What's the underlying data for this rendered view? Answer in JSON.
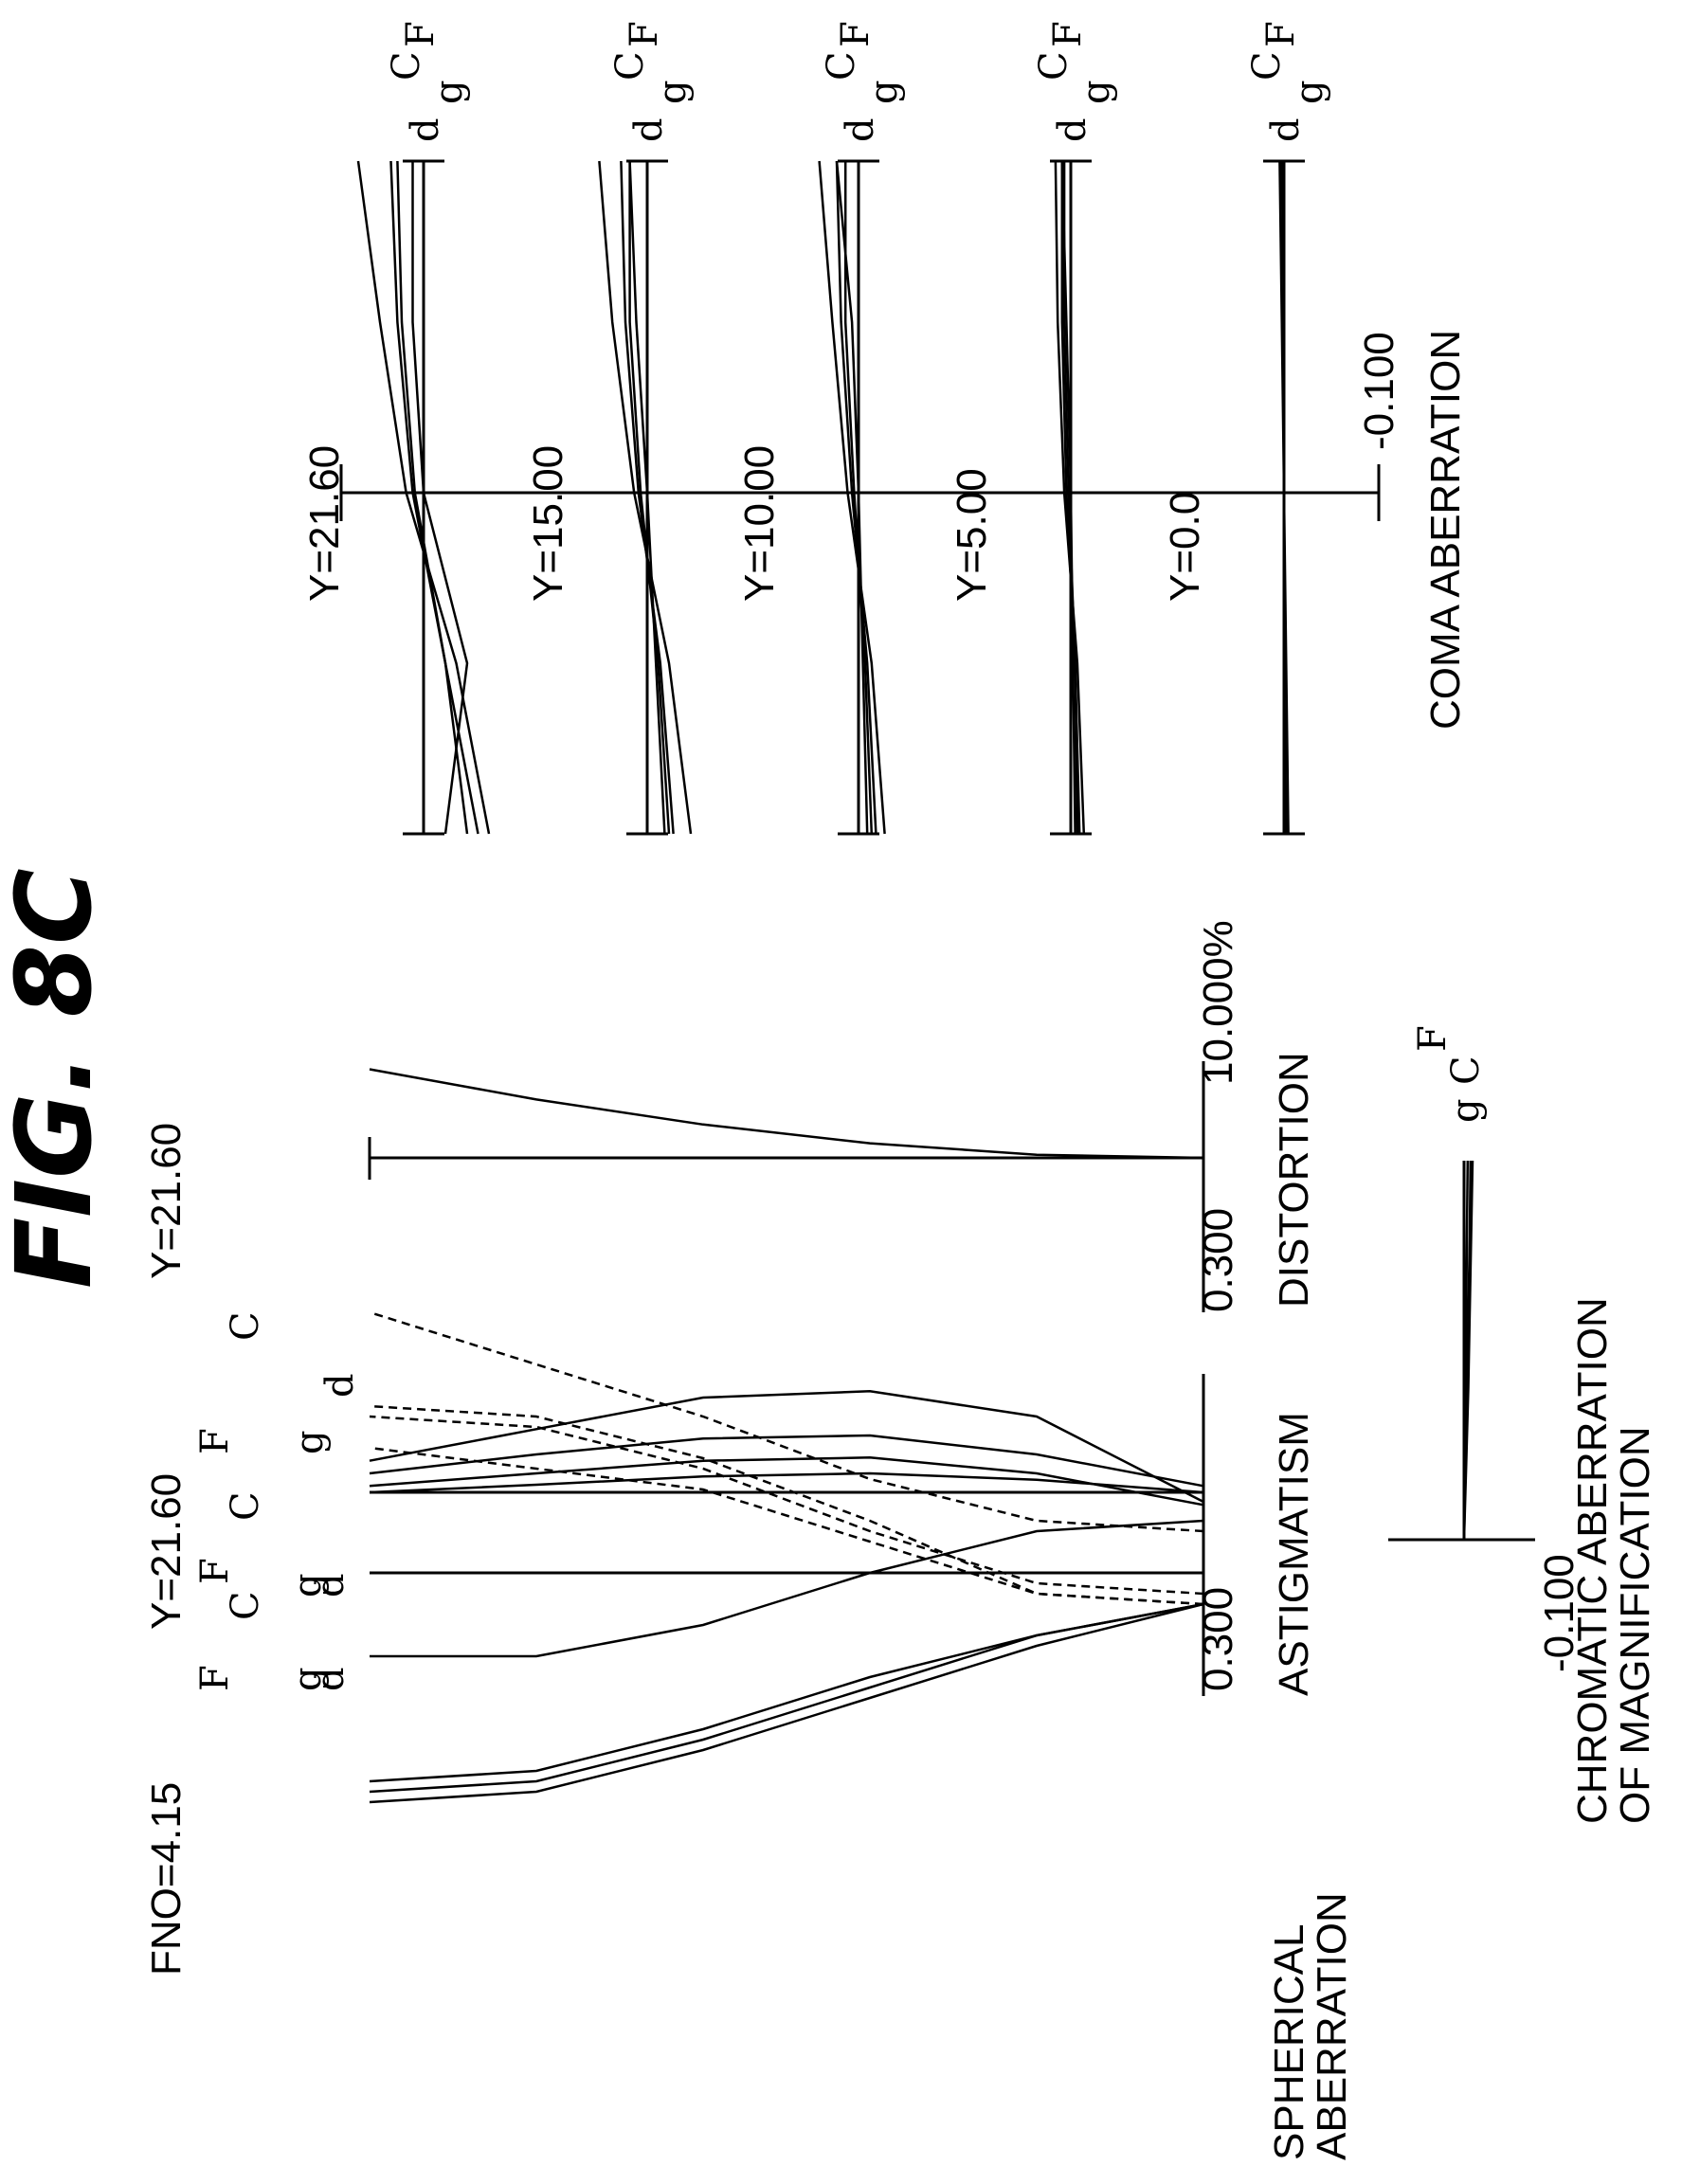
{
  "figure_title": "FIG. 8C",
  "chart_data": [
    {
      "type": "line",
      "title": "SPHERICAL ABERRATION",
      "header": "FNO=4.15",
      "scale_label": "0.300",
      "legend": [
        "d",
        "g",
        "C",
        "F"
      ],
      "x_range": [
        -0.3,
        0.3
      ],
      "y": [
        0,
        0.2,
        0.4,
        0.6,
        0.8,
        1.0
      ],
      "series": [
        {
          "name": "d",
          "values": [
            0,
            0.02,
            0.03,
            0.025,
            0.012,
            0.0
          ]
        },
        {
          "name": "g",
          "values": [
            -0.02,
            0.03,
            0.055,
            0.05,
            0.03,
            0.01
          ]
        },
        {
          "name": "C",
          "values": [
            0.01,
            0.06,
            0.09,
            0.085,
            0.06,
            0.03
          ]
        },
        {
          "name": "F",
          "values": [
            -0.015,
            0.12,
            0.16,
            0.15,
            0.1,
            0.05
          ]
        }
      ]
    },
    {
      "type": "line",
      "title": "ASTIGMATISM",
      "header": "Y=21.60",
      "scale_label": "0.300",
      "legend_sagittal": [
        "d",
        "g",
        "F",
        "C"
      ],
      "legend_meridional": [
        "d",
        "g",
        "F",
        "C"
      ],
      "x_range": [
        -0.3,
        0.3
      ],
      "y": [
        0,
        0.2,
        0.4,
        0.6,
        0.8,
        1.0
      ],
      "series": [
        {
          "name": "d",
          "kind": "sagittal",
          "values": [
            -0.03,
            -0.06,
            -0.1,
            -0.15,
            -0.19,
            -0.2
          ]
        },
        {
          "name": "g",
          "kind": "sagittal",
          "values": [
            -0.03,
            -0.07,
            -0.12,
            -0.17,
            -0.21,
            -0.22
          ]
        },
        {
          "name": "F",
          "kind": "sagittal",
          "values": [
            -0.03,
            -0.06,
            -0.11,
            -0.16,
            -0.2,
            -0.21
          ]
        },
        {
          "name": "C",
          "kind": "sagittal",
          "values": [
            0.05,
            0.04,
            0.0,
            -0.05,
            -0.08,
            -0.08
          ]
        },
        {
          "name": "d",
          "kind": "meridional",
          "values": [
            -0.03,
            -0.02,
            0.03,
            0.08,
            0.1,
            0.12
          ]
        },
        {
          "name": "g",
          "kind": "meridional",
          "values": [
            -0.02,
            -0.01,
            0.04,
            0.1,
            0.14,
            0.15
          ]
        },
        {
          "name": "F",
          "kind": "meridional",
          "values": [
            -0.03,
            -0.02,
            0.05,
            0.11,
            0.15,
            0.16
          ]
        },
        {
          "name": "C",
          "kind": "meridional",
          "values": [
            0.04,
            0.05,
            0.09,
            0.15,
            0.2,
            0.25
          ]
        }
      ]
    },
    {
      "type": "line",
      "title": "DISTORTION",
      "header": "Y=21.60",
      "scale_label": "10.000%",
      "x_range": [
        -10,
        10
      ],
      "y": [
        0,
        0.2,
        0.4,
        0.6,
        0.8,
        1.0
      ],
      "series": [
        {
          "name": "d",
          "values": [
            0,
            0.3,
            1.4,
            3.2,
            5.6,
            8.5
          ]
        }
      ]
    },
    {
      "type": "line",
      "title": "CHROMATIC ABERRATION OF MAGNIFICATION",
      "title_lines": [
        "CHROMATIC ABERRATION",
        "OF MAGNIFICATION"
      ],
      "scale_label": "-0.100",
      "legend": [
        "g",
        "C",
        "F"
      ],
      "x_range": [
        -0.1,
        0.1
      ],
      "y": [
        0,
        0.2,
        0.4,
        0.6,
        0.8,
        1.0
      ],
      "series": [
        {
          "name": "C",
          "values": [
            0,
            0.001,
            0.002,
            0.003,
            0.004,
            0.005
          ]
        },
        {
          "name": "F",
          "values": [
            0,
            0.002,
            0.004,
            0.006,
            0.008,
            0.009
          ]
        },
        {
          "name": "g",
          "values": [
            0,
            0.003,
            0.006,
            0.008,
            0.01,
            0.012
          ]
        }
      ]
    },
    {
      "type": "line",
      "title": "COMA ABERRATION",
      "scale_label": "-0.100",
      "legend": [
        "d",
        "g",
        "C",
        "F"
      ],
      "x_range": [
        -0.1,
        0.1
      ],
      "panels": [
        {
          "label": "Y=21.60",
          "values": {
            "d": [
              0.02,
              0.01,
              -0.005,
              -0.012,
              -0.015
            ],
            "g": [
              0.03,
              0.015,
              -0.008,
              -0.02,
              -0.03
            ],
            "C": [
              0.025,
              0.01,
              -0.004,
              -0.01,
              -0.012
            ],
            "F": [
              0.01,
              0.02,
              0.0,
              -0.005,
              -0.005
            ]
          }
        },
        {
          "label": "Y=15.00",
          "values": {
            "d": [
              0.012,
              0.006,
              -0.004,
              -0.01,
              -0.012
            ],
            "g": [
              0.02,
              0.01,
              -0.006,
              -0.016,
              -0.022
            ],
            "C": [
              0.01,
              0.005,
              -0.003,
              -0.008,
              -0.008
            ],
            "F": [
              0.008,
              0.004,
              0.0,
              -0.005,
              -0.008
            ]
          }
        },
        {
          "label": "Y=10.00",
          "values": {
            "d": [
              0.008,
              0.004,
              -0.003,
              -0.008,
              -0.01
            ],
            "g": [
              0.012,
              0.006,
              -0.005,
              -0.012,
              -0.018
            ],
            "C": [
              0.006,
              0.003,
              -0.002,
              -0.006,
              -0.006
            ],
            "F": [
              0.004,
              0.002,
              0.0,
              -0.003,
              -0.01
            ]
          }
        },
        {
          "label": "Y=5.00",
          "values": {
            "d": [
              0.004,
              0.002,
              -0.002,
              -0.004,
              -0.004
            ],
            "g": [
              0.006,
              0.003,
              -0.003,
              -0.006,
              -0.007
            ],
            "C": [
              0.003,
              0.002,
              -0.001,
              -0.003,
              -0.003
            ],
            "F": [
              0.002,
              0.001,
              0.0,
              -0.002,
              -0.004
            ]
          }
        },
        {
          "label": "Y=0.0",
          "values": {
            "d": [
              0.001,
              0.0,
              0.0,
              0.0,
              -0.001
            ],
            "g": [
              0.002,
              0.001,
              0.0,
              -0.001,
              -0.002
            ],
            "C": [
              0.001,
              0.0,
              0.0,
              0.0,
              -0.001
            ],
            "F": [
              0.0,
              0.0,
              0.0,
              0.0,
              0.0
            ]
          }
        }
      ]
    }
  ]
}
